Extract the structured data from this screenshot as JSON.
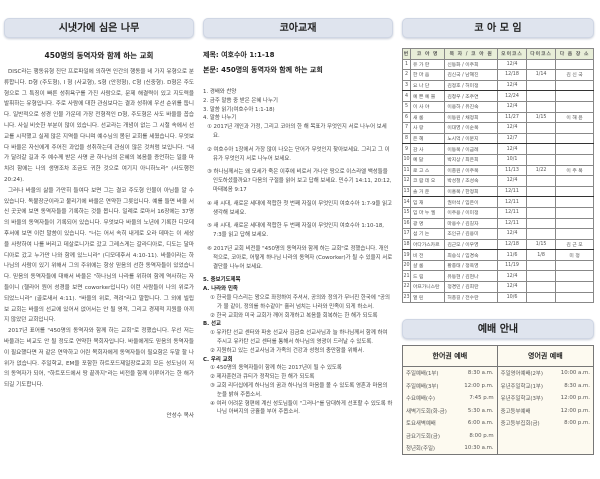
{
  "left": {
    "header": "시냇가에 심은 나무",
    "title": "450명의 동역자와 함께 하는 교회",
    "paragraphs": [
      "DISC라는 행동유형 진단 프로파일에 의하면 인간의 행동을 네 가지 유형으로 분류합니다. D형 (주도형), I 형 (사교형), S형 (안정형), C형 (신중형). D형은 주도형으로 그 특징이 빠른 성취욕구를 가진 사람으로, 문제 해결력이 있고 지도력을 발휘하는 유형입니다. 주로 사람에 대한 관심보다는 결과 성취에 우선 순위를 둡니다. 일반적으로 성경 인물 가운데 가장 전형적인 D형, 주도형은 사도 바울을 꼽습니다. 사실 비슷한 부분이 많이 있습니다. 선교라는 개념이 없는 그 시절 속에서 선교를 시작했고 실제 많은 지역을 다니며 예수님의 몸된 교회를 세웠습니다. 무엇보다 바울은 자신에게 주어진 과업을 성취하는데 관심이 많은 것처럼 보입니다. \"내가 달려갈 길과 주 예수께 받은 사명 곧 하나님의 은혜의 복음을 증언하는 일을 마치려 함에는 나의 생명조차 조금도 귀한 것으로 여기지 아니하노라\" (사도행전 20:24).",
      "그러나 바울의 삶을 가만히 들여다 보면 그는 결코 주도형 인물이 아님을 알 수 있습니다. 독불장군이라고 불리기에 바울은 연약한 그릇입니다. 예를 들면 바울 서신 곳곳에 보면 동역자들을 기록하는 것을 봅니다. 일례로 로마서 16장에는 37명의 바울의 동역자들이 기록되어 있습니다. 무엇보다 바울의 노년에 기록한 디모데후서에 보면 이런 말씀이 있습니다. \"너는 어서 속히 내게로 오라 데마는 이 세상을 사랑하여 나를 버리고 데살로니가로 갔고 그레스게는 갈라디아로, 디도는 달마디아로 갔고 누가만 나와 함께 있느니라\" (디모데후서 4:10-11). 바울이라는 하나님의 사람이 있기 위해서 그의 주위에는 항상 믿음의 선한 동역자들이 있었습니다. 믿음의 동역자들에 대해서 바울은 \"하나님의 나라를 위하여 함께 역사하는 자들이니 (헬라어 원어 성경을 보면 coworker입니다) 이런 사람들이 나의 위로가 되었느니라\" (골로새서 4:11). \"바울의 위로, 격려\"라고 말합니다. 그 외에 빌립보 교회는 바울의 선교에 있어서 없어서는 안 될 영적, 그리고 경제적 지원을 아끼지 않았던 교회입니다.",
      "2017년 표어를 \"450명의 동역자와 함께 하는 교회\"로 정했습니다. 우선 저는 바울과는 비교도 안 될 정도로 연약한 목회자입니다. 바울에게도 믿음의 동역자들이 필요했다면 저 같은 연약하고 어린 목회자에게 동역자들이 필요함은 두말 할 나위가 없습니다. 주일학교, EM을 포함한 하트포드제일장로교회 모든 성도님이 저의 동역자가 되어, \"하트포드에서 땅 끝까지\"라는 비전을 함께 이루어가는 한 해가 되길 기도합니다."
    ],
    "signature": "안성수 목사"
  },
  "middle": {
    "header": "코아교재",
    "subject": "제목: 여호수아 1:1-18",
    "text": "본문: 450명의 동역자와 함께 하는 교회",
    "steps": [
      "1. 경배와 찬양",
      "2. 금주 말씀 중 받은 은혜 나누기",
      "3. 말씀 읽기(여호수아 1:1-18)",
      "4. 말씀 나누기"
    ],
    "questions": [
      "① 2017년 개인과 가정, 그리고 코아의 한 해 목표가 무엇인지 서로 나누어 보세요.",
      "② 여호수아 1장에서 가장 많이 나오는 단어가 무엇인지 찾아보세요. 그리고 그 이유가 무엇인지 서로 나누어 보세요.",
      "③ 하나님께서는 왜 모세가 죽은 이후에 비로서 가나안 땅으로 이스라엘 백성들을 인도하셨을까요? 다음의 구절을 읽어 보고 답해 보세요. 민수기 14:11, 20:12, 마태복음 9:17",
      "④ 새 시대, 새로운 세대에 적합한 첫 번째 자질이 무엇인지 여호수아 1:7-9을 읽고 생각해 보세요.",
      "⑤ 새 시대, 새로운 세대에 적합한 두 번째 자질이 무엇인지 여호수아 1:10-18, 7:3을 읽고 답해 보세요.",
      "⑥ 2017년 교회 비전을 \"450명의 동역자와 함께 하는 교회\"로 정했습니다. 개인적으로, 코아로, 어떻게 하나님 나라의 동역자 (Coworker)가 될 수 있을지 서로 결단을 나누어 보세요."
    ],
    "prayer_title": "5. 중보기도제목",
    "prayer": [
      {
        "title": "A. 나라와 민족",
        "items": [
          "① 한국을 다스리는 왕으로 좌정하여 주셔서, 공의와 정의가 무너진 한국에 \"공의가 물 같이, 정의를 하수같이\" 흘러 넘치는 나라와 민족이 되게 하소서.",
          "② 한국 교회와 미국 교회가 깨어 회개하고 복음을 회복하는 한 해가 되도록"
        ]
      },
      {
        "title": "B. 선교",
        "items": [
          "① 유카탄 선교 센터와 파송 선교사 김금호 선교사님과 늘 하나님께서 함께 하여 주시고 유카탄 선교 센터를 통해서 하나님의 영광이 드러날 수 있도록.",
          "② 지원하고 있는 선교사님과 가족의 건강과 성령의 충만함을 위해서."
        ]
      },
      {
        "title": "C. 우리 교회",
        "items": [
          "① 450명의 동역자들이 함께 하는 2017년이 될 수 있도록",
          "② 제자훈련과 큐티가 정착되는 한 해가 되도록",
          "③ 교회 리더십에게 하나님의 꿈과 하나님의 마음을 볼 수 있도록 영혼과 마음의 눈을 밝혀 주옵소서.",
          "④ 여러 어려운 형편에 계신 성도님들이 \"그러나\"를 담대하게 선포할 수 있도록 하나님 아버지의 긍휼을 부어 주옵소서."
        ]
      }
    ]
  },
  "right": {
    "header": "코 아 모 임",
    "columns": [
      "번",
      "코 아 명",
      "목 자 / 코 아 원",
      "오이코스",
      "다이코스",
      "다 음 장 소"
    ],
    "rows": [
      [
        "1",
        "유 가 란",
        "신동화 / 이주희",
        "12/4",
        "",
        ""
      ],
      [
        "2",
        "한 마 음",
        "김신국 / 남혜진",
        "12/18",
        "1/14",
        "김 신 국"
      ],
      [
        "3",
        "요 나 단",
        "김정호 / 허미정",
        "12/4",
        "",
        ""
      ],
      [
        "4",
        "예 쁜 예 쁠",
        "김청우 / 조주연",
        "12/24",
        "",
        ""
      ],
      [
        "5",
        "이 사 야",
        "이용하 / 유진숙",
        "12/4",
        "",
        ""
      ],
      [
        "6",
        "새 롬",
        "이동원 / 채정희",
        "11/27",
        "1/15",
        "이 해 윤"
      ],
      [
        "7",
        "사 랑",
        "이대영 / 이순복",
        "12/4",
        "",
        ""
      ],
      [
        "8",
        "은 혜",
        "노시억 / 이문지",
        "12/7",
        "",
        ""
      ],
      [
        "9",
        "감 사",
        "이동복 / 이금례",
        "12/4",
        "",
        ""
      ],
      [
        "10",
        "예 닮",
        "박지상 / 최은희",
        "10/1",
        "",
        ""
      ],
      [
        "11",
        "로 고 스",
        "이충원 / 이주복",
        "11/13",
        "1/22",
        "이 주 복"
      ],
      [
        "12",
        "코 람 데 오",
        "박성철 / 조성숙",
        "12/4",
        "",
        ""
      ],
      [
        "13",
        "솔 거 운",
        "이홍복 / 한정희",
        "12/11",
        "",
        ""
      ],
      [
        "14",
        "임 재",
        "권아석 / 임은이",
        "12/11",
        "",
        ""
      ],
      [
        "15",
        "임 마 누 엘",
        "이주용 / 이미정",
        "12/11",
        "",
        ""
      ],
      [
        "16",
        "광 명",
        "마용수 / 김길자",
        "12/11",
        "",
        ""
      ],
      [
        "17",
        "섬 기 는",
        "조인규 / 김용미",
        "12/4",
        "",
        ""
      ],
      [
        "18",
        "아다가스카르",
        "김근모 / 이우영",
        "12/18",
        "1/15",
        "김 근 모"
      ],
      [
        "19",
        "비 전",
        "최승식 / 임경숙",
        "11/6",
        "1/8",
        "미 정"
      ],
      [
        "20",
        "샬 롬",
        "황종태 / 정옥영",
        "11/19",
        "",
        ""
      ],
      [
        "21",
        "드 림",
        "유동현 / 김현나",
        "12/4",
        "",
        ""
      ],
      [
        "22",
        "아프가니스탄",
        "정경민 / 김희란",
        "12/4",
        "",
        ""
      ],
      [
        "23",
        "열 린",
        "허총길 / 전수란",
        "10/6",
        "",
        ""
      ]
    ],
    "worship_header": "예배 안내",
    "korean_title": "한어권 예배",
    "english_title": "영어권 예배",
    "korean": [
      [
        "주일예배(1부)",
        "8:30 a.m."
      ],
      [
        "주일예배(3부)",
        "12:00 p.m."
      ],
      [
        "수요예배(수)",
        "7:45 p.m"
      ],
      [
        "새벽기도회(화-금)",
        "5:30 a.m."
      ],
      [
        "토요새벽예배",
        "6:00 a.m."
      ],
      [
        "금요기도회(금)",
        "8:00 p.m"
      ],
      [
        "청년회(주일)",
        "10:30 a.m."
      ]
    ],
    "english": [
      [
        "주일영어예배(2부)",
        "10:00 a.m."
      ],
      [
        "유년주일학교(1부)",
        "8:30 a.m."
      ],
      [
        "유년주일학교(3부)",
        "12:00 p.m."
      ],
      [
        "중고등부예배",
        "12:00 p.m."
      ],
      [
        "중고등부집회(금)",
        "8:00 p.m."
      ]
    ]
  }
}
